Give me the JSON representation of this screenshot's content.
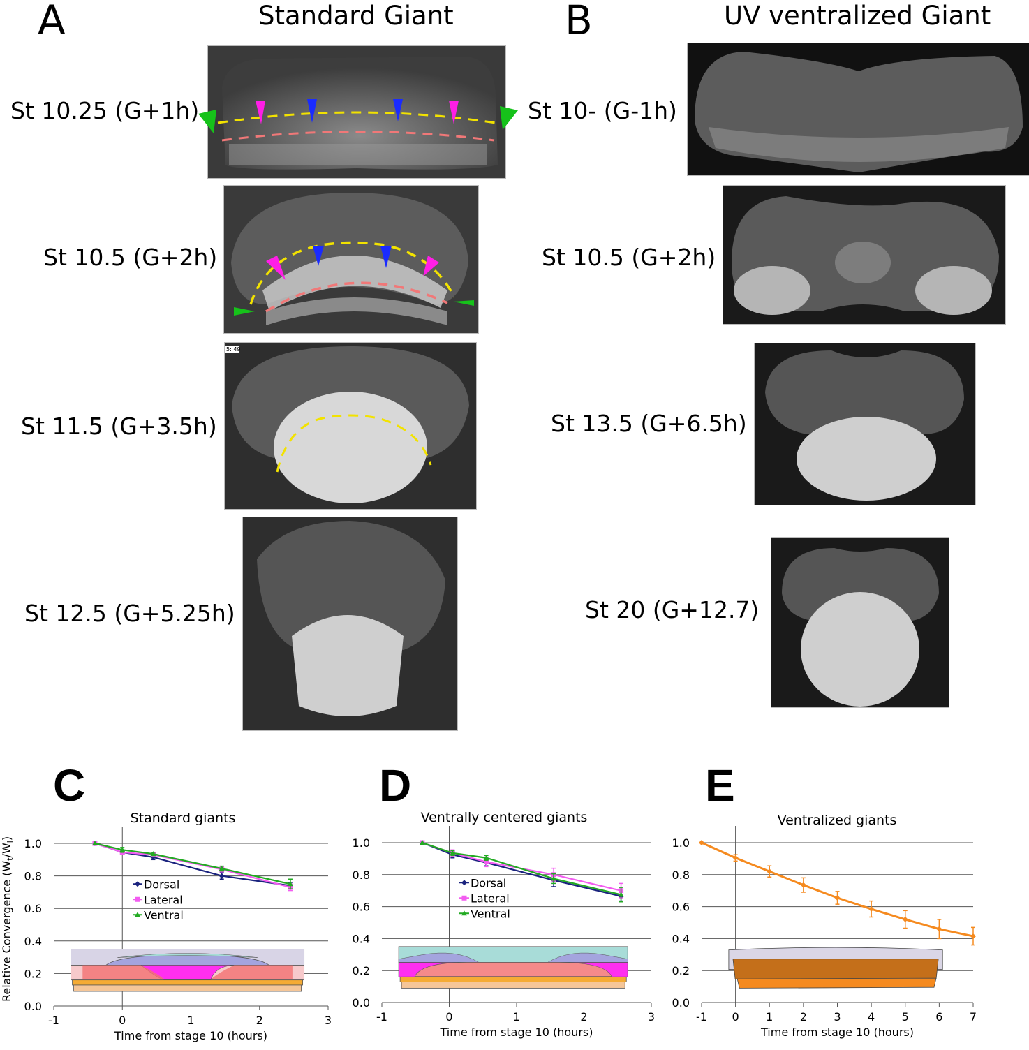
{
  "panels": {
    "A": {
      "letter": "A",
      "title": "Standard Giant",
      "stages": [
        "St 10.25 (G+1h)",
        "St 10.5 (G+2h)",
        "St 11.5 (G+3.5h)",
        "St 12.5 (G+5.25h)"
      ],
      "timestamp_overlay": "5: 49"
    },
    "B": {
      "letter": "B",
      "title": "UV ventralized Giant",
      "stages": [
        "St 10- (G-1h)",
        "St 10.5 (G+2h)",
        "St 13.5 (G+6.5h)",
        "St 20 (G+12.7)"
      ]
    }
  },
  "marker_colors": {
    "yellow": "#f2e200",
    "salmon": "#f07878",
    "magenta": "#ff1ee6",
    "blue": "#1a2bff",
    "green": "#16c21a"
  },
  "chart_data": [
    {
      "panel": "C",
      "type": "line",
      "title": "Standard giants",
      "xlabel": "Time from stage 10 (hours)",
      "ylabel": "Relative Convergence (Wt/Wi)",
      "xlim": [
        -1,
        3
      ],
      "ylim": [
        0,
        1.0
      ],
      "xticks": [
        "-1",
        "0",
        "1",
        "2",
        "3"
      ],
      "yticks": [
        "0.0",
        "0.2",
        "0.4",
        "0.6",
        "0.8",
        "1.0"
      ],
      "grid": "horizontal",
      "legend": "center-left",
      "x": [
        -0.4,
        0,
        0.45,
        1.45,
        2.45
      ],
      "series": [
        {
          "name": "Dorsal",
          "color": "#1a237e",
          "marker": "diamond",
          "values": [
            1.0,
            0.945,
            0.915,
            0.8,
            0.74
          ],
          "errors": [
            0.005,
            0.01,
            0.015,
            0.02,
            0.02
          ]
        },
        {
          "name": "Lateral",
          "color": "#f25cf0",
          "marker": "square",
          "values": [
            1.0,
            0.945,
            0.93,
            0.84,
            0.73
          ],
          "errors": [
            0.005,
            0.01,
            0.01,
            0.015,
            0.02
          ]
        },
        {
          "name": "Ventral",
          "color": "#22aa22",
          "marker": "triangle",
          "values": [
            1.0,
            0.96,
            0.935,
            0.845,
            0.75
          ],
          "errors": [
            0.005,
            0.015,
            0.01,
            0.015,
            0.03
          ]
        }
      ],
      "schematic": "standard"
    },
    {
      "panel": "D",
      "type": "line",
      "title": "Ventrally centered giants",
      "xlabel": "Time from stage 10 (hours)",
      "ylabel": "",
      "xlim": [
        -1,
        3
      ],
      "ylim": [
        0,
        1.0
      ],
      "xticks": [
        "-1",
        "0",
        "1",
        "2",
        "3"
      ],
      "yticks": [
        "0.0",
        "0.2",
        "0.4",
        "0.6",
        "0.8",
        "1.0"
      ],
      "grid": "horizontal",
      "legend": "center-left",
      "x": [
        -0.4,
        0.05,
        0.55,
        1.55,
        2.55
      ],
      "series": [
        {
          "name": "Dorsal",
          "color": "#1a237e",
          "marker": "diamond",
          "values": [
            1.0,
            0.925,
            0.875,
            0.765,
            0.665
          ],
          "errors": [
            0.005,
            0.02,
            0.02,
            0.04,
            0.03
          ]
        },
        {
          "name": "Lateral",
          "color": "#f25cf0",
          "marker": "square",
          "values": [
            1.0,
            0.935,
            0.88,
            0.8,
            0.7
          ],
          "errors": [
            0.005,
            0.02,
            0.03,
            0.04,
            0.045
          ]
        },
        {
          "name": "Ventral",
          "color": "#22aa22",
          "marker": "triangle",
          "values": [
            1.0,
            0.935,
            0.905,
            0.775,
            0.675
          ],
          "errors": [
            0.005,
            0.015,
            0.015,
            0.03,
            0.045
          ]
        }
      ],
      "schematic": "ventral-centered"
    },
    {
      "panel": "E",
      "type": "line",
      "title": "Ventralized giants",
      "xlabel": "Time from stage 10 (hours)",
      "ylabel": "",
      "xlim": [
        -1,
        7
      ],
      "ylim": [
        0,
        1.0
      ],
      "xticks": [
        "-1",
        "0",
        "1",
        "2",
        "3",
        "4",
        "5",
        "6",
        "7"
      ],
      "yticks": [
        "0.0",
        "0.2",
        "0.4",
        "0.6",
        "0.8",
        "1.0"
      ],
      "grid": "horizontal",
      "legend": "none",
      "x": [
        -1,
        0,
        1,
        2,
        3,
        4,
        5,
        6,
        7
      ],
      "series": [
        {
          "name": "Ventralized",
          "color": "#f58a1f",
          "marker": "diamond",
          "values": [
            1.0,
            0.905,
            0.82,
            0.735,
            0.655,
            0.585,
            0.52,
            0.46,
            0.415
          ],
          "errors": [
            0.005,
            0.02,
            0.035,
            0.045,
            0.04,
            0.05,
            0.055,
            0.06,
            0.055
          ]
        }
      ],
      "schematic": "ventralized"
    }
  ]
}
